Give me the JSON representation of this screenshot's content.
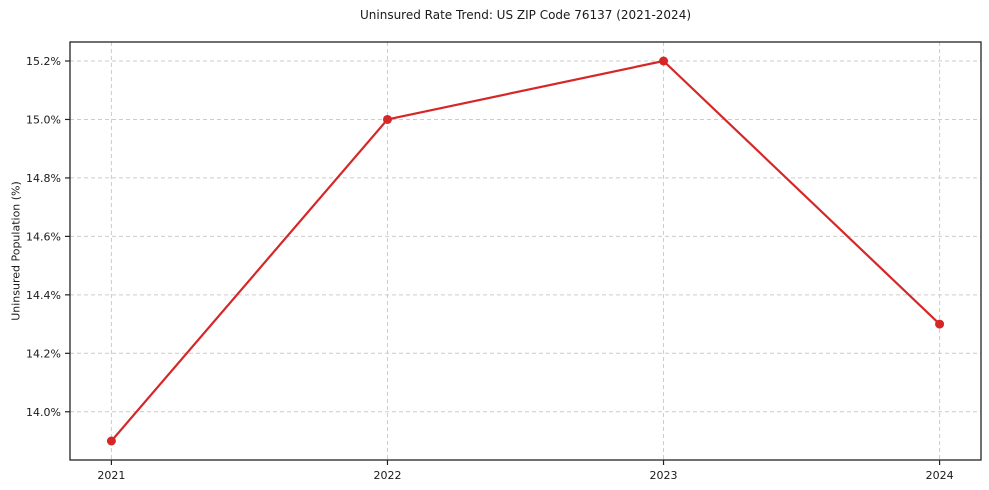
{
  "page": {
    "background_color": "#ffffff"
  },
  "chart_data": {
    "type": "line",
    "title": "Uninsured Rate Trend: US ZIP Code 76137 (2021-2024)",
    "xlabel": "",
    "ylabel": "Uninsured Population (%)",
    "x": [
      2021,
      2022,
      2023,
      2024
    ],
    "xtick_labels": [
      "2021",
      "2022",
      "2023",
      "2024"
    ],
    "values": [
      13.9,
      15.0,
      15.2,
      14.3
    ],
    "yticks": [
      14.0,
      14.2,
      14.4,
      14.6,
      14.8,
      15.0,
      15.2
    ],
    "ytick_labels": [
      "14.0%",
      "14.2%",
      "14.4%",
      "14.6%",
      "14.8%",
      "15.0%",
      "15.2%"
    ],
    "xlim": [
      2020.85,
      2024.15
    ],
    "ylim": [
      13.835,
      15.265
    ],
    "grid": true,
    "grid_style": "dashed",
    "legend_position": "none",
    "line_color": "#d62728",
    "marker": "circle",
    "marker_radius": 4.5,
    "line_width": 2.2,
    "grid_color": "#cccccc",
    "spine_color": "#222222",
    "text_color": "#1a1a1a"
  }
}
